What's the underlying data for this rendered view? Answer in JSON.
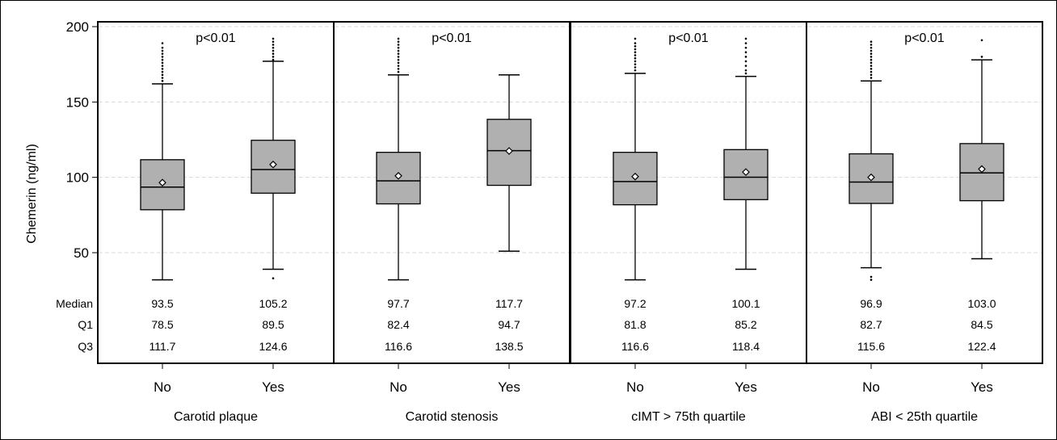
{
  "chart_data": {
    "type": "box",
    "ylabel": "Chemerin (ng/ml)",
    "ylim": [
      28,
      203
    ],
    "yticks": [
      50,
      100,
      150,
      200
    ],
    "grid": true,
    "row_labels": [
      "Median",
      "Q1",
      "Q3"
    ],
    "colors": {
      "box_fill": "#b0b0b0",
      "outline": "#000000",
      "grid": "#d9d9d9"
    },
    "panels": [
      {
        "label": "Carotid plaque",
        "annotation": "p<0.01",
        "groups": [
          {
            "name": "No",
            "min": 32,
            "q1": 78.5,
            "median": 93.5,
            "q3": 111.7,
            "max": 162,
            "mean": 96.5,
            "outliers": [
              164,
              166,
              168,
              170,
              172,
              174,
              176,
              178,
              180,
              182,
              184,
              186,
              189
            ],
            "median_text": "93.5",
            "q1_text": "78.5",
            "q3_text": "111.7"
          },
          {
            "name": "Yes",
            "min": 39,
            "q1": 89.5,
            "median": 105.2,
            "q3": 124.6,
            "max": 177,
            "mean": 108.5,
            "outliers": [
              33,
              178,
              180,
              182,
              184,
              186,
              188,
              190,
              192
            ],
            "median_text": "105.2",
            "q1_text": "89.5",
            "q3_text": "124.6"
          }
        ]
      },
      {
        "label": "Carotid stenosis",
        "annotation": "p<0.01",
        "groups": [
          {
            "name": "No",
            "min": 32,
            "q1": 82.4,
            "median": 97.7,
            "q3": 116.6,
            "max": 168,
            "mean": 101,
            "outliers": [
              170,
              172,
              174,
              176,
              178,
              180,
              182,
              184,
              186,
              188,
              190,
              192
            ],
            "median_text": "97.7",
            "q1_text": "82.4",
            "q3_text": "116.6"
          },
          {
            "name": "Yes",
            "min": 51,
            "q1": 94.7,
            "median": 117.7,
            "q3": 138.5,
            "max": 168,
            "mean": 117.5,
            "outliers": [],
            "median_text": "117.7",
            "q1_text": "94.7",
            "q3_text": "138.5"
          }
        ]
      },
      {
        "label": "cIMT > 75th quartile",
        "annotation": "p<0.01",
        "groups": [
          {
            "name": "No",
            "min": 32,
            "q1": 81.8,
            "median": 97.2,
            "q3": 116.6,
            "max": 169,
            "mean": 100.5,
            "outliers": [
              171,
              173,
              175,
              177,
              179,
              181,
              183,
              185,
              187,
              189,
              192
            ],
            "median_text": "97.2",
            "q1_text": "81.8",
            "q3_text": "116.6"
          },
          {
            "name": "Yes",
            "min": 39,
            "q1": 85.2,
            "median": 100.1,
            "q3": 118.4,
            "max": 167,
            "mean": 103.5,
            "outliers": [
              169,
              171,
              174,
              177,
              180,
              183,
              186,
              189,
              192
            ],
            "median_text": "100.1",
            "q1_text": "85.2",
            "q3_text": "118.4"
          }
        ]
      },
      {
        "label": "ABI < 25th quartile",
        "annotation": "p<0.01",
        "groups": [
          {
            "name": "No",
            "min": 40,
            "q1": 82.7,
            "median": 96.9,
            "q3": 115.6,
            "max": 164,
            "mean": 100,
            "outliers": [
              32,
              34,
              166,
              168,
              170,
              172,
              174,
              176,
              178,
              180,
              182,
              184,
              186,
              188,
              190
            ],
            "median_text": "96.9",
            "q1_text": "82.7",
            "q3_text": "115.6"
          },
          {
            "name": "Yes",
            "min": 46,
            "q1": 84.5,
            "median": 103.0,
            "q3": 122.4,
            "max": 178,
            "mean": 105.5,
            "outliers": [
              180,
              191
            ],
            "median_text": "103.0",
            "q1_text": "84.5",
            "q3_text": "122.4"
          }
        ]
      }
    ]
  }
}
